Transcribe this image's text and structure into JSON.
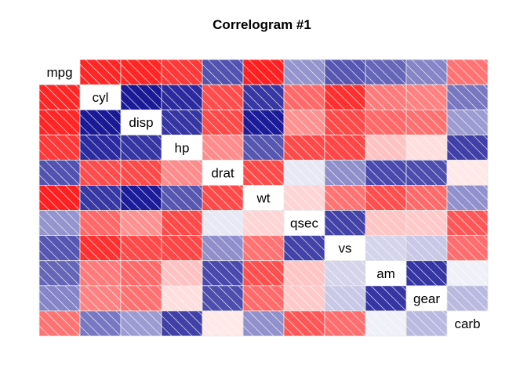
{
  "chart_data": {
    "type": "heatmap",
    "title": "Correlogram #1",
    "variables": [
      "mpg",
      "cyl",
      "disp",
      "hp",
      "drat",
      "wt",
      "qsec",
      "vs",
      "am",
      "gear",
      "carb"
    ],
    "matrix": [
      [
        1.0,
        -0.85,
        -0.85,
        -0.78,
        0.68,
        -0.87,
        0.42,
        0.66,
        0.6,
        0.48,
        -0.55
      ],
      [
        -0.85,
        1.0,
        0.9,
        0.83,
        -0.7,
        0.78,
        -0.59,
        -0.81,
        -0.52,
        -0.49,
        0.53
      ],
      [
        -0.85,
        0.9,
        1.0,
        0.79,
        -0.71,
        0.89,
        -0.43,
        -0.71,
        -0.59,
        -0.56,
        0.39
      ],
      [
        -0.78,
        0.83,
        0.79,
        1.0,
        -0.45,
        0.66,
        -0.71,
        -0.72,
        -0.24,
        -0.13,
        0.75
      ],
      [
        0.68,
        -0.7,
        -0.71,
        -0.45,
        1.0,
        -0.71,
        0.09,
        0.44,
        0.71,
        0.7,
        -0.09
      ],
      [
        -0.87,
        0.78,
        0.89,
        0.66,
        -0.71,
        1.0,
        -0.17,
        -0.55,
        -0.69,
        -0.58,
        0.43
      ],
      [
        0.42,
        -0.59,
        -0.43,
        -0.71,
        0.09,
        -0.17,
        1.0,
        0.74,
        -0.23,
        -0.21,
        -0.66
      ],
      [
        0.66,
        -0.81,
        -0.71,
        -0.72,
        0.44,
        -0.55,
        0.74,
        1.0,
        0.17,
        0.21,
        -0.57
      ],
      [
        0.6,
        -0.52,
        -0.59,
        -0.24,
        0.71,
        -0.69,
        -0.23,
        0.17,
        1.0,
        0.79,
        0.06
      ],
      [
        0.48,
        -0.49,
        -0.56,
        -0.13,
        0.7,
        -0.58,
        -0.21,
        0.21,
        0.79,
        1.0,
        0.27
      ],
      [
        -0.55,
        0.53,
        0.39,
        0.75,
        -0.09,
        0.43,
        -0.66,
        -0.57,
        0.06,
        0.27,
        1.0
      ]
    ],
    "color_scale": {
      "negative": "#ff0000",
      "zero": "#ffffff",
      "positive": "#00008b"
    },
    "value_range": [
      -1,
      1
    ],
    "shading": "diagonal hatch on all off-diagonal cells"
  }
}
